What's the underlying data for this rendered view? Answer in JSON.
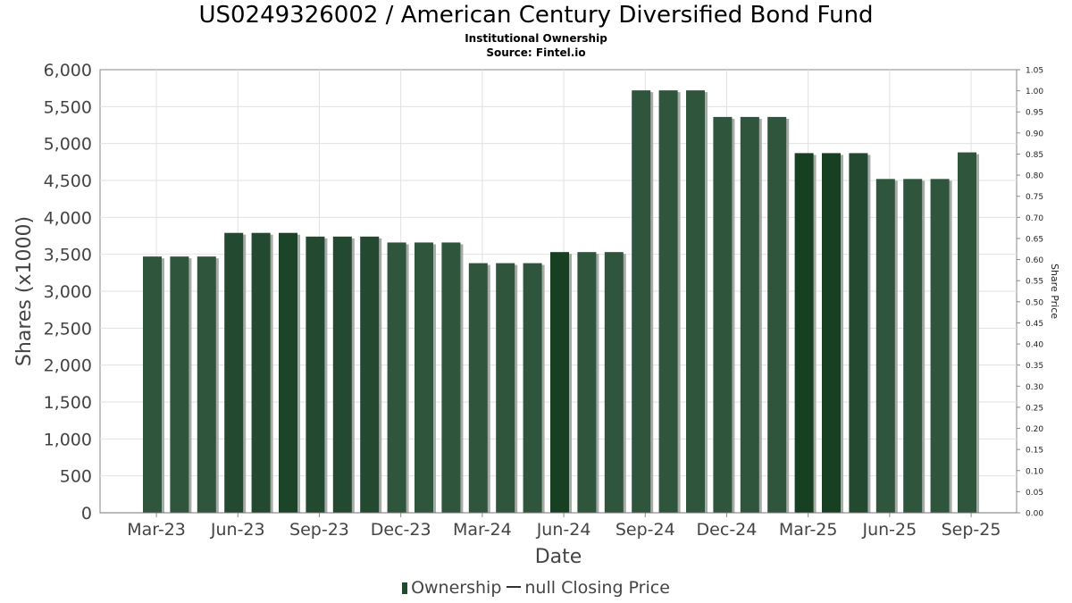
{
  "chart_data": {
    "type": "bar",
    "title": "US0249326002 / American Century Diversified Bond Fund",
    "subtitle_1": "Institutional Ownership",
    "subtitle_2": "Source: Fintel.io",
    "xlabel": "Date",
    "ylabel": "Shares (x1000)",
    "y2label": "Share Price",
    "ylim": [
      0,
      6000
    ],
    "y2lim": [
      0,
      1.05
    ],
    "yticks": [
      "0",
      "500",
      "1,000",
      "1,500",
      "2,000",
      "2,500",
      "3,000",
      "3,500",
      "4,000",
      "4,500",
      "5,000",
      "5,500",
      "6,000"
    ],
    "y2ticks": [
      "0.00",
      "0.05",
      "0.10",
      "0.15",
      "0.20",
      "0.25",
      "0.30",
      "0.35",
      "0.40",
      "0.45",
      "0.50",
      "0.55",
      "0.60",
      "0.65",
      "0.70",
      "0.75",
      "0.80",
      "0.85",
      "0.90",
      "0.95",
      "1.00",
      "1.05"
    ],
    "xticks": [
      "Mar-23",
      "Jun-23",
      "Sep-23",
      "Dec-23",
      "Mar-24",
      "Jun-24",
      "Sep-24",
      "Dec-24",
      "Mar-25",
      "Jun-25",
      "Sep-25"
    ],
    "grid": true,
    "legend_position": "bottom",
    "series": [
      {
        "name": "Ownership",
        "color": "#2f553d",
        "values": [
          3470,
          3470,
          3470,
          3790,
          3790,
          3790,
          3740,
          3740,
          3740,
          3660,
          3660,
          3660,
          3380,
          3380,
          3380,
          3530,
          3530,
          3530,
          5720,
          5720,
          5720,
          5360,
          5360,
          5360,
          4870,
          4870,
          4870,
          4520,
          4520,
          4520,
          4880
        ]
      }
    ],
    "bar_colors": [
      "#2f553d",
      "#2f553d",
      "#2f553d",
      "#234a31",
      "#234a31",
      "#1c4429",
      "#234a31",
      "#234a31",
      "#234a31",
      "#2f553d",
      "#2f553d",
      "#2f553d",
      "#2f553d",
      "#2f553d",
      "#2f553d",
      "#173f22",
      "#2f553d",
      "#2f553d",
      "#2f553d",
      "#2f553d",
      "#2f553d",
      "#2f553d",
      "#2f553d",
      "#2f553d",
      "#173f22",
      "#173f22",
      "#234a31",
      "#2f553d",
      "#2f553d",
      "#2f553d",
      "#2f553d"
    ]
  },
  "legend": {
    "ownership": "Ownership",
    "closing_price": "null Closing Price"
  }
}
